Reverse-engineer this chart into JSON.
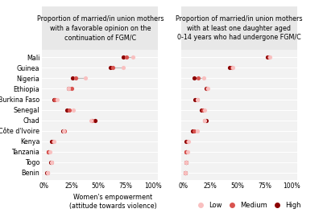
{
  "countries": [
    "Mali",
    "Guinea",
    "Nigeria",
    "Ethiopia",
    "Burkina Faso",
    "Senegal",
    "Chad",
    "Côte d'Ivoire",
    "Kenya",
    "Tanzania",
    "Togo",
    "Benin"
  ],
  "panel1_title": "Proportion of married/in union mothers\nwith a favorable opinion on the\ncontinuation of FGM/C",
  "panel2_title": "Proportion of married/in union mothers\nwith at least one daughter aged\n0-14 years who had undergone FGM/C",
  "xlabel_main": "Women's empowerment",
  "xlabel_sub": "(attitude towards violence)",
  "panel1": {
    "low": [
      82,
      73,
      38,
      22,
      12,
      27,
      43,
      18,
      9,
      5,
      7,
      3
    ],
    "medium": [
      76,
      63,
      29,
      25,
      10,
      23,
      44,
      19,
      8,
      4,
      7,
      3
    ],
    "high": [
      73,
      61,
      26,
      22,
      9,
      21,
      47,
      17,
      7,
      4,
      6,
      2
    ]
  },
  "panel2": {
    "low": [
      80,
      46,
      19,
      23,
      13,
      20,
      20,
      13,
      5,
      4,
      3,
      2
    ],
    "medium": [
      79,
      45,
      14,
      22,
      13,
      18,
      20,
      10,
      4,
      3,
      3,
      2
    ],
    "high": [
      78,
      43,
      10,
      21,
      11,
      17,
      21,
      9,
      3,
      3,
      3,
      2
    ]
  },
  "color_low": "#f9c0c0",
  "color_medium": "#d9534f",
  "color_high": "#8b0000",
  "line_color": "#bbbbbb",
  "bg_panel": "#f2f2f2",
  "bg_title": "#e8e8e8",
  "bg_fig": "#ffffff",
  "title_fontsize": 5.8,
  "label_fontsize": 5.8,
  "tick_fontsize": 5.5,
  "legend_fontsize": 6.0
}
